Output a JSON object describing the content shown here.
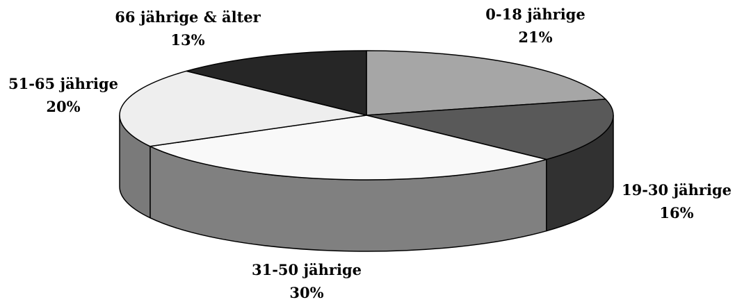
{
  "chart_data": {
    "type": "pie",
    "title": "",
    "three_d": true,
    "start_angle_deg": -90,
    "direction": "clockwise",
    "slices": [
      {
        "label": "0-18 jährige",
        "value": 21,
        "value_label": "21%",
        "color": "#a6a6a6"
      },
      {
        "label": "19-30 jährige",
        "value": 16,
        "value_label": "16%",
        "color": "#595959"
      },
      {
        "label": "31-50 jährige",
        "value": 30,
        "value_label": "30%",
        "color": "#f9f9f9"
      },
      {
        "label": "51-65 jährige",
        "value": 20,
        "value_label": "20%",
        "color": "#eeeeee"
      },
      {
        "label": "66 jährige & älter",
        "value": 13,
        "value_label": "13%",
        "color": "#262626"
      }
    ]
  }
}
